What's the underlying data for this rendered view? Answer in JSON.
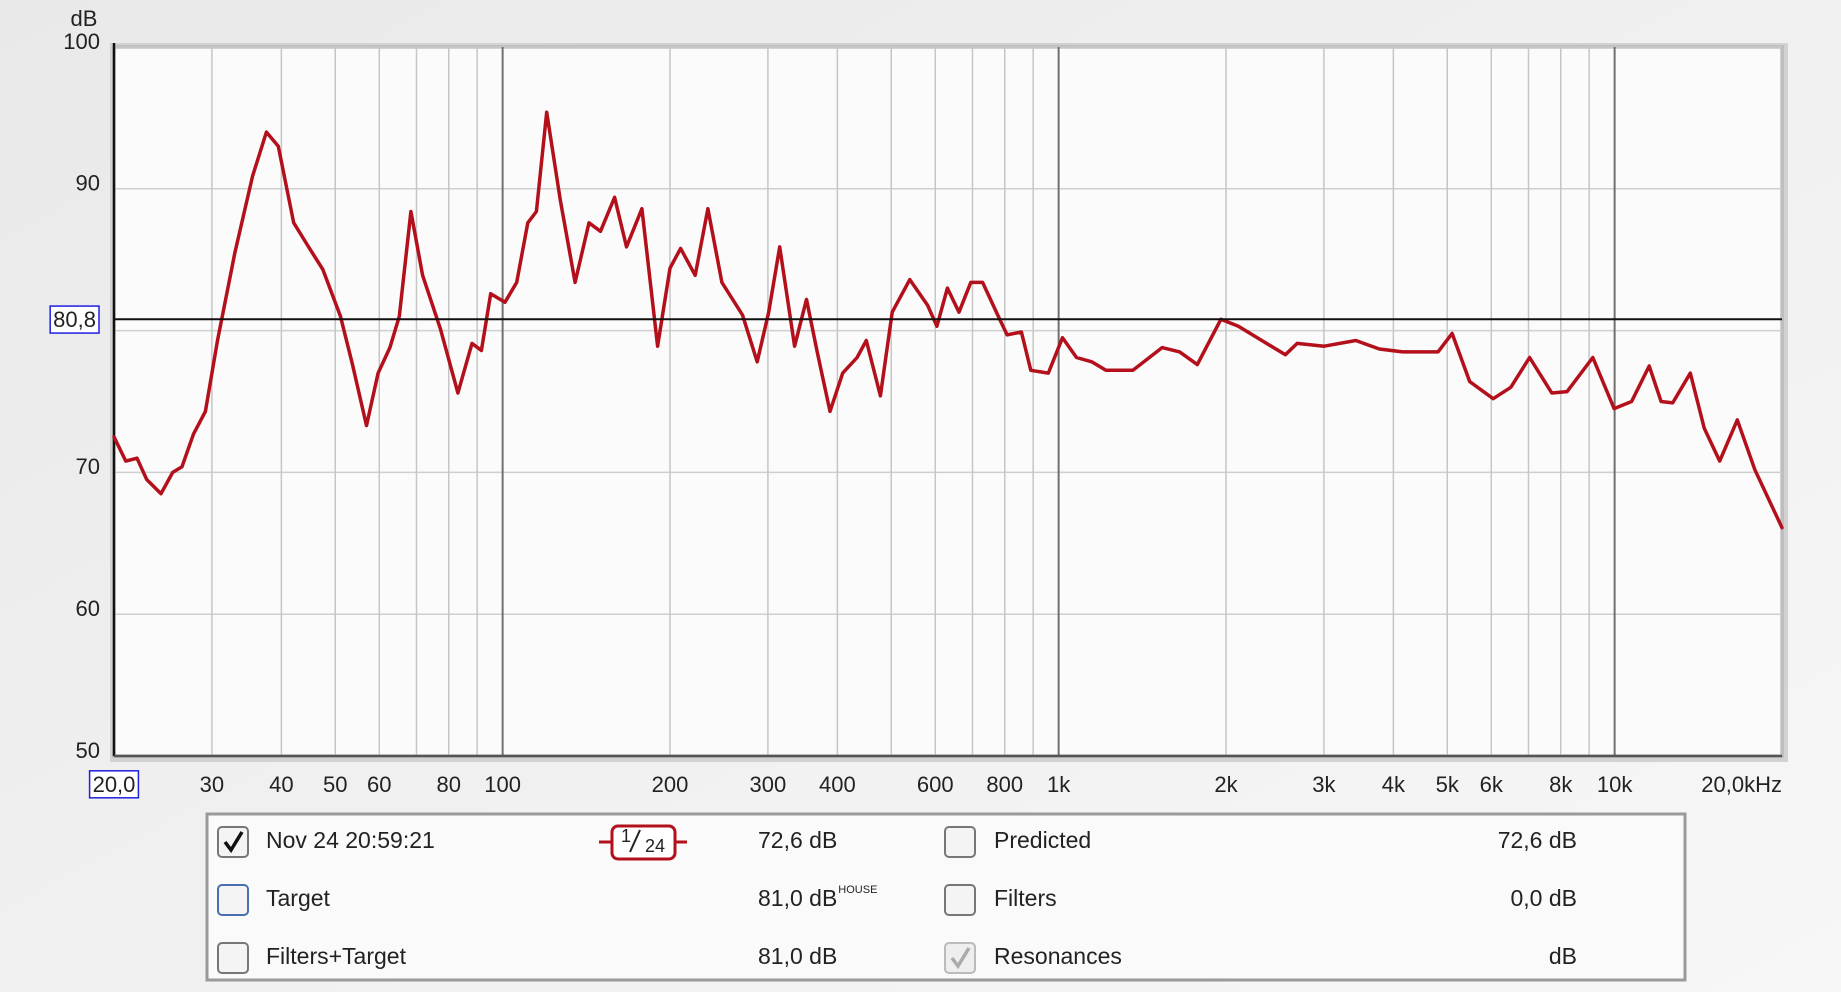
{
  "chart_data": {
    "type": "line",
    "y_label": "dB",
    "log_x": true,
    "grid": true,
    "xlim": [
      20,
      20000
    ],
    "ylim": [
      50,
      100
    ],
    "yticks": [
      50,
      60,
      70,
      80,
      90,
      100
    ],
    "xticks": [
      30,
      40,
      50,
      60,
      80,
      100,
      200,
      300,
      400,
      600,
      800,
      {
        "value": 1000,
        "label": "1k"
      },
      {
        "value": 2000,
        "label": "2k"
      },
      {
        "value": 3000,
        "label": "3k"
      },
      {
        "value": 4000,
        "label": "4k"
      },
      {
        "value": 5000,
        "label": "5k"
      },
      {
        "value": 6000,
        "label": "6k"
      },
      {
        "value": 8000,
        "label": "8k"
      },
      {
        "value": 10000,
        "label": "10k"
      },
      {
        "value": 20000,
        "label": "20,0kHz"
      }
    ],
    "x_minor_gridlines": [
      70,
      90,
      500,
      700,
      900,
      7000,
      9000
    ],
    "cursor_x": {
      "value": 20,
      "label": "20,0"
    },
    "cursor_y": {
      "value": 80.8,
      "label": "80,8"
    },
    "x": [
      20,
      21,
      22,
      22.9,
      24.3,
      25.5,
      26.5,
      27.8,
      29.2,
      30.7,
      33,
      35.5,
      37.6,
      39.5,
      42.1,
      44.6,
      47.5,
      51.1,
      53.7,
      56.9,
      59.7,
      62.7,
      65.2,
      68.4,
      71.8,
      77.3,
      83.1,
      88.1,
      91.6,
      95.2,
      101,
      106,
      111,
      115,
      120,
      127,
      135,
      143,
      150,
      159,
      167,
      178,
      190,
      200,
      209,
      222,
      234,
      248,
      270,
      287,
      301,
      315,
      335,
      352,
      368,
      388,
      409,
      434,
      451,
      478,
      502,
      540,
      581,
      604,
      631,
      662,
      695,
      730,
      777,
      808,
      857,
      891,
      958,
      1016,
      1077,
      1147,
      1216,
      1360,
      1535,
      1651,
      1776,
      1958,
      2105,
      2320,
      2558,
      2686,
      3002,
      3424,
      3774,
      4159,
      4812,
      5101,
      5486,
      6047,
      6505,
      7031,
      7710,
      8213,
      9137,
      9978,
      10730,
      11540,
      12120,
      12720,
      13680,
      14500,
      15450,
      16620,
      17870,
      20000
    ],
    "series": [
      {
        "name": "Nov 24 20:59:21",
        "color": "#b3101c",
        "values": [
          72.5,
          70.8,
          71.0,
          69.5,
          68.5,
          70.0,
          70.4,
          72.7,
          74.3,
          79.3,
          85.5,
          90.9,
          94.0,
          93.0,
          87.6,
          86.0,
          84.3,
          81.0,
          77.6,
          73.3,
          77.0,
          78.8,
          81.0,
          88.4,
          83.9,
          80.1,
          75.6,
          79.1,
          78.6,
          82.6,
          82.0,
          83.4,
          87.6,
          88.4,
          95.4,
          89.2,
          83.4,
          87.6,
          87.0,
          89.4,
          85.9,
          88.6,
          78.9,
          84.4,
          85.8,
          83.9,
          88.6,
          83.4,
          81.1,
          77.8,
          81.3,
          85.9,
          78.9,
          82.2,
          78.5,
          74.3,
          77.0,
          78.1,
          79.3,
          75.4,
          81.3,
          83.6,
          81.8,
          80.3,
          83.0,
          81.3,
          83.4,
          83.4,
          81.1,
          79.7,
          79.9,
          77.2,
          77.0,
          79.5,
          78.1,
          77.8,
          77.2,
          77.2,
          78.8,
          78.5,
          77.6,
          80.8,
          80.3,
          79.3,
          78.3,
          79.1,
          78.9,
          79.3,
          78.7,
          78.5,
          78.5,
          79.8,
          76.4,
          75.2,
          76.0,
          78.1,
          75.6,
          75.7,
          78.1,
          74.5,
          75.0,
          77.5,
          75.0,
          74.9,
          77.0,
          73.1,
          70.8,
          73.7,
          70.2,
          66.1
        ]
      }
    ]
  },
  "legend_panel": {
    "measurement_checked": true,
    "measurement_level": "72,6 dB",
    "smoothing": {
      "numerator": "1",
      "denominator": "24"
    },
    "items": [
      {
        "label": "Target",
        "level": "81,0 dB",
        "note": "HOUSE",
        "checked": false,
        "color": "#1c1cf0"
      },
      {
        "label": "Filters+Target",
        "level": "81,0 dB",
        "checked": false,
        "color": "#0e8f8f"
      },
      {
        "label": "Predicted",
        "level": "72,6 dB",
        "checked": false,
        "color": "#d0101c"
      },
      {
        "label": "Filters",
        "level": "0,0 dB",
        "checked": false,
        "color": "#1ab6d2"
      },
      {
        "label": "Resonances",
        "level": "dB",
        "checked": true,
        "disabled": true,
        "color": "#a8a8a8"
      }
    ]
  }
}
